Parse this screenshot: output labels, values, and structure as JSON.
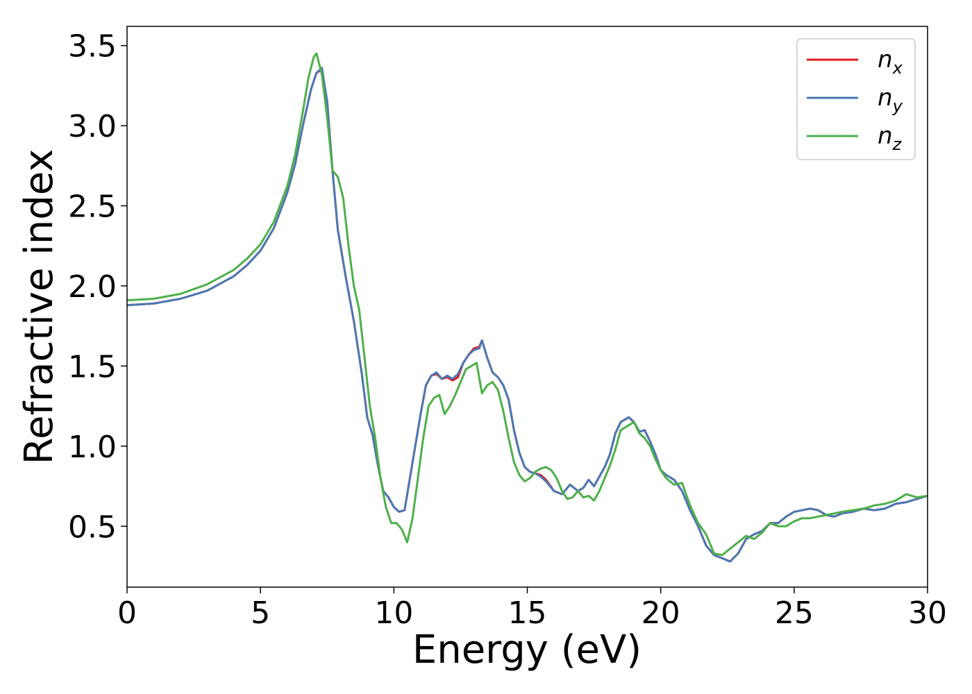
{
  "chart_data": {
    "type": "line",
    "xlabel": "Energy (eV)",
    "ylabel": "Refractive index",
    "xlim": [
      0,
      30
    ],
    "ylim": [
      0.12,
      3.62
    ],
    "xticks": [
      0,
      5,
      10,
      15,
      20,
      25,
      30
    ],
    "xtick_labels": [
      "0",
      "5",
      "10",
      "15",
      "20",
      "25",
      "30"
    ],
    "yticks": [
      0.5,
      1.0,
      1.5,
      2.0,
      2.5,
      3.0,
      3.5
    ],
    "ytick_labels": [
      "0.5",
      "1.0",
      "1.5",
      "2.0",
      "2.5",
      "3.0",
      "3.5"
    ],
    "grid": false,
    "legend_position": "top-right",
    "series": [
      {
        "name": "n",
        "subscript": "x",
        "color": "#e41a1c",
        "x": [
          0,
          1,
          2,
          3,
          4,
          4.5,
          5,
          5.5,
          6,
          6.3,
          6.6,
          6.9,
          7.1,
          7.3,
          7.5,
          7.7,
          7.9,
          8.2,
          8.5,
          8.8,
          9.0,
          9.2,
          9.4,
          9.6,
          9.8,
          10.0,
          10.2,
          10.4,
          10.6,
          10.8,
          11.0,
          11.2,
          11.4,
          11.6,
          11.8,
          12.0,
          12.2,
          12.4,
          12.6,
          12.8,
          13.0,
          13.2,
          13.3,
          13.5,
          13.7,
          13.9,
          14.1,
          14.3,
          14.5,
          14.7,
          14.9,
          15.1,
          15.3,
          15.5,
          15.7,
          16.0,
          16.3,
          16.6,
          16.9,
          17.1,
          17.3,
          17.5,
          17.7,
          17.9,
          18.1,
          18.3,
          18.5,
          18.8,
          19.0,
          19.2,
          19.4,
          19.6,
          19.8,
          20.0,
          20.2,
          20.5,
          20.8,
          21.1,
          21.4,
          21.7,
          22.0,
          22.3,
          22.6,
          22.9,
          23.2,
          23.5,
          23.8,
          24.1,
          24.4,
          24.7,
          25.0,
          25.3,
          25.6,
          25.9,
          26.2,
          26.5,
          26.8,
          27.2,
          27.6,
          28.0,
          28.4,
          28.8,
          29.2,
          29.6,
          30.0
        ],
        "y": [
          1.88,
          1.89,
          1.92,
          1.97,
          2.06,
          2.13,
          2.22,
          2.36,
          2.58,
          2.76,
          3.01,
          3.23,
          3.33,
          3.35,
          3.15,
          2.72,
          2.35,
          2.05,
          1.78,
          1.45,
          1.18,
          1.07,
          0.88,
          0.72,
          0.68,
          0.62,
          0.59,
          0.6,
          0.8,
          1.0,
          1.2,
          1.38,
          1.44,
          1.45,
          1.42,
          1.43,
          1.41,
          1.43,
          1.52,
          1.57,
          1.61,
          1.62,
          1.66,
          1.55,
          1.46,
          1.43,
          1.38,
          1.29,
          1.1,
          0.96,
          0.87,
          0.84,
          0.83,
          0.82,
          0.79,
          0.72,
          0.7,
          0.76,
          0.72,
          0.74,
          0.79,
          0.75,
          0.81,
          0.87,
          0.95,
          1.08,
          1.15,
          1.18,
          1.15,
          1.09,
          1.1,
          1.03,
          0.95,
          0.85,
          0.82,
          0.79,
          0.72,
          0.6,
          0.5,
          0.38,
          0.32,
          0.3,
          0.28,
          0.33,
          0.42,
          0.45,
          0.47,
          0.52,
          0.52,
          0.56,
          0.59,
          0.6,
          0.61,
          0.6,
          0.57,
          0.56,
          0.58,
          0.59,
          0.61,
          0.6,
          0.61,
          0.64,
          0.65,
          0.67,
          0.69
        ],
        "note": ""
      },
      {
        "name": "n",
        "subscript": "y",
        "color": "#4a78b4",
        "x": [
          0,
          1,
          2,
          3,
          4,
          4.5,
          5,
          5.5,
          6,
          6.3,
          6.6,
          6.9,
          7.1,
          7.3,
          7.5,
          7.7,
          7.9,
          8.2,
          8.5,
          8.8,
          9.0,
          9.2,
          9.4,
          9.6,
          9.8,
          10.0,
          10.2,
          10.4,
          10.6,
          10.8,
          11.0,
          11.2,
          11.4,
          11.6,
          11.8,
          12.0,
          12.2,
          12.4,
          12.6,
          12.8,
          13.0,
          13.2,
          13.3,
          13.5,
          13.7,
          13.9,
          14.1,
          14.3,
          14.5,
          14.7,
          14.9,
          15.1,
          15.3,
          15.5,
          15.7,
          16.0,
          16.3,
          16.6,
          16.9,
          17.1,
          17.3,
          17.5,
          17.7,
          17.9,
          18.1,
          18.3,
          18.5,
          18.8,
          19.0,
          19.2,
          19.4,
          19.6,
          19.8,
          20.0,
          20.2,
          20.5,
          20.8,
          21.1,
          21.4,
          21.7,
          22.0,
          22.3,
          22.6,
          22.9,
          23.2,
          23.5,
          23.8,
          24.1,
          24.4,
          24.7,
          25.0,
          25.3,
          25.6,
          25.9,
          26.2,
          26.5,
          26.8,
          27.2,
          27.6,
          28.0,
          28.4,
          28.8,
          29.2,
          29.6,
          30.0
        ],
        "y": [
          1.88,
          1.89,
          1.92,
          1.97,
          2.06,
          2.13,
          2.22,
          2.36,
          2.58,
          2.76,
          3.01,
          3.23,
          3.33,
          3.36,
          3.15,
          2.72,
          2.35,
          2.05,
          1.78,
          1.45,
          1.18,
          1.07,
          0.88,
          0.72,
          0.68,
          0.62,
          0.59,
          0.6,
          0.8,
          1.0,
          1.2,
          1.38,
          1.44,
          1.46,
          1.42,
          1.44,
          1.42,
          1.45,
          1.52,
          1.57,
          1.6,
          1.61,
          1.66,
          1.55,
          1.46,
          1.43,
          1.38,
          1.29,
          1.1,
          0.96,
          0.87,
          0.84,
          0.83,
          0.81,
          0.78,
          0.72,
          0.7,
          0.76,
          0.72,
          0.74,
          0.79,
          0.75,
          0.81,
          0.87,
          0.95,
          1.08,
          1.15,
          1.18,
          1.15,
          1.09,
          1.1,
          1.03,
          0.95,
          0.85,
          0.82,
          0.79,
          0.72,
          0.6,
          0.5,
          0.38,
          0.32,
          0.3,
          0.28,
          0.33,
          0.42,
          0.45,
          0.47,
          0.52,
          0.52,
          0.56,
          0.59,
          0.6,
          0.61,
          0.6,
          0.57,
          0.56,
          0.58,
          0.59,
          0.61,
          0.6,
          0.61,
          0.64,
          0.65,
          0.67,
          0.69
        ]
      },
      {
        "name": "n",
        "subscript": "z",
        "color": "#4daf4a",
        "x": [
          0,
          1,
          2,
          3,
          4,
          4.5,
          5,
          5.5,
          6,
          6.3,
          6.6,
          6.8,
          7.0,
          7.1,
          7.3,
          7.5,
          7.7,
          7.9,
          8.1,
          8.3,
          8.5,
          8.7,
          8.9,
          9.1,
          9.3,
          9.5,
          9.7,
          9.9,
          10.1,
          10.3,
          10.5,
          10.7,
          10.9,
          11.1,
          11.3,
          11.5,
          11.7,
          11.9,
          12.1,
          12.3,
          12.5,
          12.7,
          12.9,
          13.1,
          13.3,
          13.5,
          13.7,
          13.9,
          14.1,
          14.3,
          14.5,
          14.7,
          14.9,
          15.1,
          15.3,
          15.5,
          15.7,
          15.9,
          16.1,
          16.3,
          16.5,
          16.7,
          16.9,
          17.1,
          17.3,
          17.5,
          17.7,
          17.9,
          18.1,
          18.3,
          18.5,
          18.8,
          19.0,
          19.2,
          19.4,
          19.6,
          19.8,
          20.0,
          20.2,
          20.5,
          20.8,
          21.1,
          21.4,
          21.7,
          22.0,
          22.3,
          22.6,
          22.9,
          23.2,
          23.5,
          23.8,
          24.1,
          24.4,
          24.7,
          25.0,
          25.3,
          25.6,
          25.9,
          26.2,
          26.5,
          26.8,
          27.2,
          27.6,
          28.0,
          28.4,
          28.8,
          29.2,
          29.6,
          30.0
        ],
        "y": [
          1.91,
          1.92,
          1.95,
          2.01,
          2.1,
          2.17,
          2.26,
          2.4,
          2.62,
          2.82,
          3.1,
          3.3,
          3.43,
          3.45,
          3.32,
          3.05,
          2.72,
          2.68,
          2.55,
          2.25,
          2.0,
          1.85,
          1.55,
          1.25,
          1.05,
          0.8,
          0.62,
          0.52,
          0.52,
          0.48,
          0.4,
          0.55,
          0.8,
          1.05,
          1.25,
          1.3,
          1.32,
          1.2,
          1.25,
          1.32,
          1.4,
          1.48,
          1.5,
          1.52,
          1.33,
          1.38,
          1.4,
          1.35,
          1.22,
          1.05,
          0.9,
          0.82,
          0.78,
          0.8,
          0.84,
          0.86,
          0.87,
          0.85,
          0.8,
          0.72,
          0.67,
          0.68,
          0.72,
          0.68,
          0.69,
          0.66,
          0.72,
          0.8,
          0.88,
          0.98,
          1.1,
          1.13,
          1.15,
          1.08,
          1.05,
          1.0,
          0.92,
          0.85,
          0.8,
          0.76,
          0.77,
          0.63,
          0.52,
          0.45,
          0.33,
          0.32,
          0.36,
          0.4,
          0.44,
          0.42,
          0.46,
          0.52,
          0.5,
          0.5,
          0.53,
          0.55,
          0.55,
          0.56,
          0.57,
          0.58,
          0.59,
          0.6,
          0.61,
          0.63,
          0.64,
          0.66,
          0.7,
          0.68,
          0.69
        ]
      }
    ]
  }
}
